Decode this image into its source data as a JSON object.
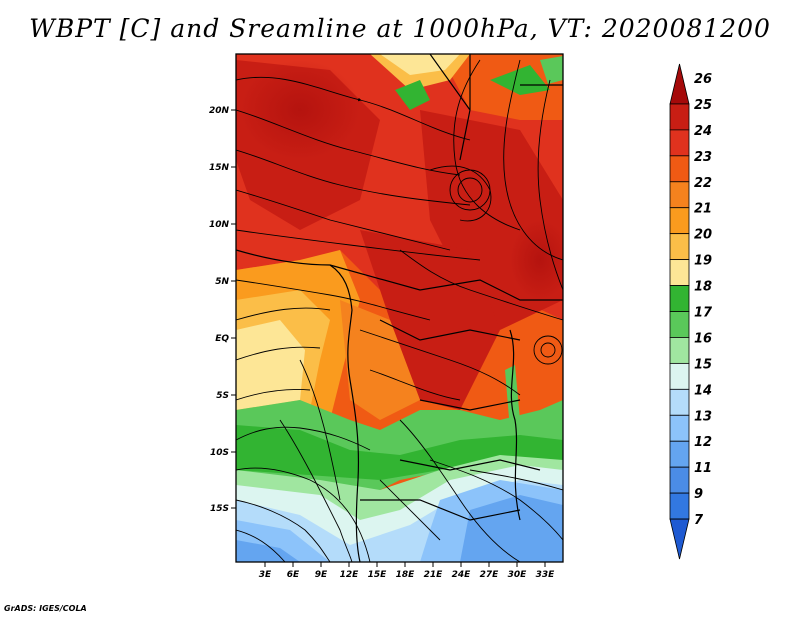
{
  "title": "WBPT [C] and Sreamline at 1000hPa, VT: 2020081200",
  "footer": "GrADS: IGES/COLA",
  "map": {
    "lat_labels": [
      "20N",
      "15N",
      "10N",
      "5N",
      "EQ",
      "5S",
      "10S",
      "15S"
    ],
    "lon_labels": [
      "3E",
      "6E",
      "9E",
      "12E",
      "15E",
      "18E",
      "21E",
      "24E",
      "27E",
      "30E",
      "33E"
    ]
  },
  "colorbar": {
    "levels": [
      "26",
      "25",
      "24",
      "23",
      "22",
      "21",
      "20",
      "19",
      "18",
      "17",
      "16",
      "15",
      "14",
      "13",
      "12",
      "11",
      "9",
      "7"
    ],
    "colors": [
      "#a50a0a",
      "#c81e14",
      "#e0321e",
      "#f05a14",
      "#f5821e",
      "#fa9b1e",
      "#fbbe48",
      "#fde696",
      "#32b432",
      "#5ac85a",
      "#a0e6a0",
      "#dcf5f0",
      "#b4dcfa",
      "#8cc3fa",
      "#64a5f0",
      "#4b8ce6",
      "#3278e1",
      "#1e5ad2"
    ]
  }
}
